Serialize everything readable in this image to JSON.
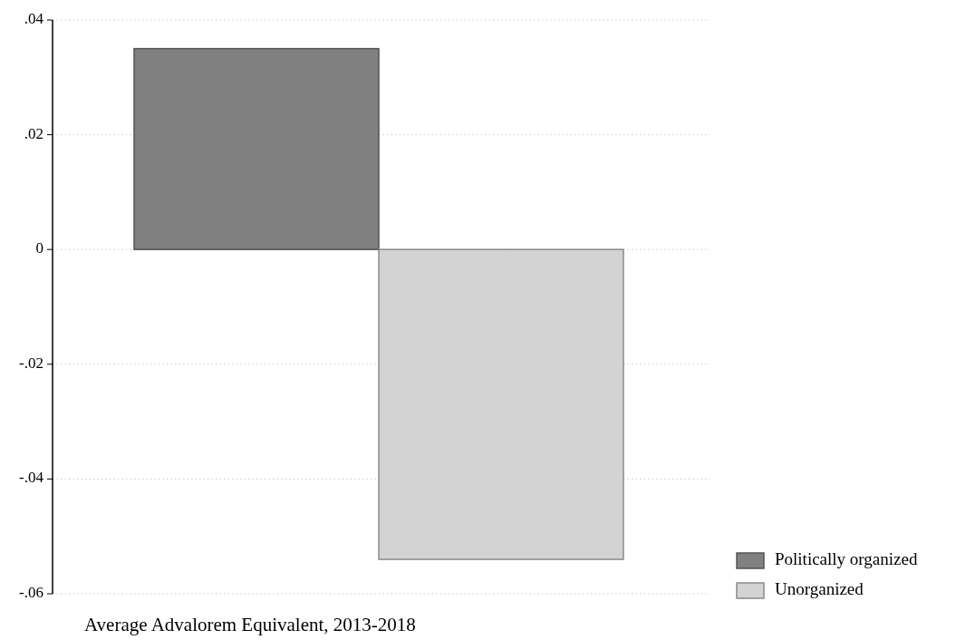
{
  "chart_data": {
    "type": "bar",
    "xlabel": "Average Advalorem Equivalent, 2013-2018",
    "categories": [
      null
    ],
    "series": [
      {
        "name": "Politically organized",
        "color": "#808080",
        "values": [
          0.035
        ]
      },
      {
        "name": "Unorganized",
        "color": "#d3d3d3",
        "values": [
          -0.054
        ]
      }
    ],
    "ylim": [
      -0.06,
      0.04
    ],
    "yticks": [
      {
        "value": -0.06,
        "label": "-.06"
      },
      {
        "value": -0.04,
        "label": "-.04"
      },
      {
        "value": -0.02,
        "label": "-.02"
      },
      0,
      {
        "value": 0.02,
        "label": ".02"
      },
      {
        "value": 0.04,
        "label": ".04"
      }
    ],
    "grid": "y",
    "legend": "bottom right"
  }
}
